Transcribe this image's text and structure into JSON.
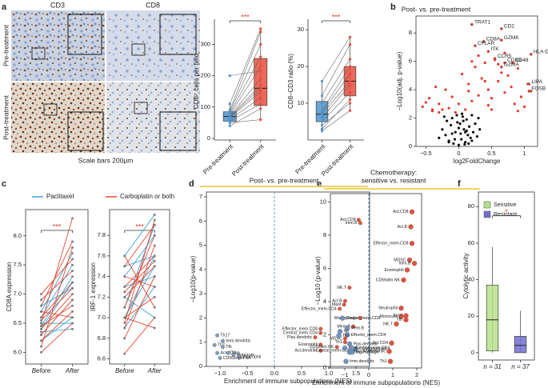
{
  "panel_labels": [
    "a",
    "b",
    "c",
    "d",
    "e",
    "f"
  ],
  "micrographs": {
    "columns": [
      "CD3",
      "CD8"
    ],
    "rows": [
      "Pre-treatment",
      "Post-treatment"
    ],
    "caption": "Scale bars 200μm"
  },
  "chart_data": [
    {
      "type": "box",
      "ylabel": "CD8⁺ cells per field",
      "categories": [
        "Pre-treatment",
        "Post-treatment"
      ],
      "colors": [
        "#4f94cd",
        "#e84c3d"
      ],
      "boxes": [
        {
          "q1": 55,
          "median": 70,
          "q3": 85,
          "low": 38,
          "high": 115
        },
        {
          "q1": 105,
          "median": 160,
          "q3": 255,
          "low": 55,
          "high": 350
        }
      ],
      "paired": {
        "before": [
          40,
          50,
          55,
          60,
          65,
          68,
          70,
          72,
          75,
          80,
          85,
          90,
          110,
          200
        ],
        "after": [
          95,
          60,
          110,
          130,
          150,
          160,
          170,
          190,
          230,
          260,
          300,
          340,
          350,
          215
        ]
      },
      "significance": "***",
      "ylim": [
        -5,
        370
      ],
      "yticks": [
        0,
        100,
        200,
        300
      ]
    },
    {
      "type": "box",
      "ylabel": "CD8–CD3 ratio (%)",
      "categories": [
        "Pre-treatment",
        "Post-treatment"
      ],
      "colors": [
        "#4f94cd",
        "#e84c3d"
      ],
      "boxes": [
        {
          "q1": 5,
          "median": 7,
          "q3": 10.5,
          "low": 2,
          "high": 16
        },
        {
          "q1": 12,
          "median": 16,
          "q3": 20,
          "low": 8,
          "high": 28
        }
      ],
      "paired": {
        "before": [
          2.5,
          3,
          4,
          5,
          6,
          7,
          7.5,
          8,
          10,
          12,
          16
        ],
        "after": [
          8,
          11,
          10,
          13,
          15,
          16,
          18,
          20,
          22,
          26,
          28
        ]
      },
      "significance": "***",
      "ylim": [
        0,
        32
      ],
      "yticks": [
        10,
        20,
        30
      ]
    },
    {
      "type": "scatter",
      "title": "Post- vs. pre-treatment",
      "xlabel": "log2FoldChange",
      "ylabel": "−Log10(adj. p-value)",
      "xlim": [
        -0.65,
        1.2
      ],
      "ylim": [
        0,
        9.2
      ],
      "xticks": [
        {
          "value": -0.5,
          "label": "−0.5"
        },
        0,
        0.5,
        1
      ],
      "yticks": [
        0,
        2,
        4,
        6,
        8
      ],
      "groups": [
        {
          "color": "#111111",
          "x": [
            -0.3,
            -0.25,
            -0.2,
            -0.18,
            -0.15,
            -0.12,
            -0.1,
            -0.08,
            -0.05,
            -0.03,
            0,
            0.02,
            0.04,
            0.06,
            0.08,
            0.1,
            0.12,
            0.14,
            0.16,
            0.18,
            0.2,
            0.22,
            0.25,
            0.28,
            0.3,
            -0.22,
            -0.06,
            0.05,
            0.1,
            0.15,
            -0.1,
            0.0,
            0.07,
            0.2,
            0.32,
            -0.15,
            0.03,
            0.12,
            -0.02,
            0.09
          ],
          "y": [
            0.6,
            1.2,
            0.8,
            1.8,
            0.4,
            1.5,
            2.0,
            0.2,
            1.0,
            2.2,
            0.1,
            1.6,
            0.5,
            2.1,
            1.2,
            0.3,
            1.9,
            0.8,
            1.4,
            0.6,
            2.2,
            1.0,
            1.6,
            0.7,
            2.0,
            2.1,
            0.5,
            2.3,
            1.0,
            0.2,
            0.9,
            1.3,
            1.8,
            0.4,
            1.2,
            0.3,
            0.9,
            1.1,
            1.7,
            0.15
          ]
        },
        {
          "color": "#e8362c",
          "x": [
            -0.55,
            -0.45,
            -0.4,
            -0.35,
            -0.3,
            -0.25,
            -0.5,
            -0.2,
            -0.15,
            -0.1,
            -0.05,
            0.0,
            0.05,
            0.1,
            0.15,
            0.2,
            0.25,
            0.3,
            0.35,
            0.4,
            0.45,
            0.5,
            0.55,
            0.6,
            0.65,
            0.7,
            0.75,
            0.8,
            0.85,
            0.9,
            0.95,
            1.0,
            1.05,
            1.1,
            0.3,
            0.45,
            0.6,
            0.4,
            0.5,
            0.2,
            -0.3,
            0.7,
            0.9,
            -0.4,
            0.15
          ],
          "y": [
            2.8,
            3.4,
            2.5,
            4.2,
            3.0,
            2.6,
            3.1,
            4.0,
            2.7,
            3.5,
            2.4,
            3.0,
            5.1,
            2.6,
            4.4,
            3.2,
            5.6,
            3.6,
            4.8,
            5.9,
            4.0,
            3.4,
            6.1,
            4.6,
            5.2,
            3.8,
            5.0,
            4.2,
            3.0,
            5.5,
            3.5,
            2.8,
            4.4,
            3.9,
            6.4,
            2.9,
            5.8,
            4.6,
            2.6,
            6.0,
            2.4,
            6.6,
            2.5,
            2.6,
            3.9
          ]
        },
        {
          "color": "#e8362c",
          "labels": [
            "TRAT1",
            "CD2",
            "CD8A",
            "GZMK",
            "CFLAR",
            "ITK",
            "HLA-DPA1",
            "CCR5",
            "CD3D",
            "CD48",
            "GZMA",
            "LIPA",
            "FOSB"
          ],
          "x": [
            0.2,
            0.65,
            0.38,
            0.65,
            0.25,
            0.45,
            1.1,
            0.55,
            0.7,
            0.82,
            0.65,
            1.07,
            1.07
          ],
          "y": [
            8.6,
            8.3,
            7.4,
            7.5,
            7.1,
            6.7,
            6.5,
            6.2,
            5.9,
            5.9,
            5.6,
            4.4,
            3.9
          ]
        }
      ]
    },
    {
      "type": "line",
      "ylabel": "CD8A expression",
      "categories": [
        "Before",
        "After"
      ],
      "significance": "***",
      "ylim": [
        5.8,
        8.45
      ],
      "yticks": [
        {
          "value": 6,
          "label": "6.0"
        },
        6.5,
        {
          "value": 7,
          "label": "7.0"
        },
        7.5,
        {
          "value": 8,
          "label": "8.0"
        }
      ],
      "series": [
        {
          "name": "Paclitaxel",
          "color": "#3aa6d8",
          "before": [
            6.2,
            6.3,
            6.4,
            6.5,
            6.6,
            6.7,
            6.35,
            6.8,
            6.45
          ],
          "after": [
            6.6,
            6.9,
            7.2,
            6.5,
            7.5,
            7.7,
            6.4,
            7.1,
            7.3
          ]
        },
        {
          "name": "Carboplatin or both",
          "color": "#e34a33",
          "before": [
            6.0,
            6.1,
            6.3,
            6.4,
            6.5,
            6.6,
            6.7,
            6.9,
            7.0,
            6.2,
            6.45,
            6.55,
            6.8
          ],
          "after": [
            6.5,
            7.8,
            6.9,
            7.0,
            8.3,
            7.2,
            6.6,
            7.4,
            7.6,
            6.7,
            6.8,
            7.1,
            7.9
          ]
        }
      ]
    },
    {
      "type": "line",
      "ylabel": "IRF-1 expression",
      "categories": [
        "Before",
        "After"
      ],
      "significance": "***",
      "ylim": [
        6.55,
        8.05
      ],
      "yticks": [
        6.6,
        6.8,
        {
          "value": 7,
          "label": "7.0"
        },
        7.2,
        7.4,
        7.6,
        7.8
      ],
      "series": [
        {
          "color": "#3aa6d8",
          "before": [
            6.9,
            7.0,
            7.1,
            7.2,
            7.3,
            7.4,
            7.5,
            7.0,
            7.6
          ],
          "after": [
            7.3,
            7.6,
            7.9,
            7.0,
            7.4,
            7.8,
            7.6,
            7.5,
            8.0
          ]
        },
        {
          "color": "#e34a33",
          "before": [
            6.65,
            6.8,
            6.9,
            7.0,
            7.1,
            7.2,
            7.3,
            7.4,
            7.5,
            7.6,
            7.0,
            6.95,
            7.25
          ],
          "after": [
            7.0,
            7.4,
            7.7,
            7.2,
            7.8,
            7.5,
            7.6,
            7.3,
            7.9,
            7.1,
            6.9,
            7.95,
            7.55
          ]
        }
      ]
    },
    {
      "type": "scatter",
      "title": "Post- vs. pre-treatment",
      "title_bar_color": "#f2c12e",
      "zero_line": "#5aa0d0",
      "xlabel": "Enrichment of immune subpopulations (NES)",
      "ylabel": "−Log10(p-value)",
      "xlim": [
        -1.25,
        1.75
      ],
      "ylim": [
        0,
        7.2
      ],
      "xticks": [
        {
          "value": -1,
          "label": "−1.0"
        },
        {
          "value": -0.5,
          "label": "−0.5"
        },
        {
          "value": 0,
          "label": "0.0"
        },
        0.5,
        {
          "value": 1,
          "label": "1.0"
        },
        1.5
      ],
      "yticks": [
        0,
        1,
        2,
        3,
        4,
        5,
        6,
        7
      ],
      "groups": [
        {
          "color": "#e0533e",
          "labels": [
            "Act.CD8",
            "Imm.B",
            "NK.T",
            "Act.B",
            "Mast",
            "Effector_mem.CD4",
            "Macrophage",
            "Mem.B",
            "Effector_mem.CD8",
            "Central_mem.CD4",
            "Plas.dendritic",
            "MDSC",
            "Th1",
            "Eosinophil",
            "CD56dim NK",
            "Act.dendritic",
            "Central_mem.CD8"
          ],
          "x": [
            1.55,
            1.58,
            1.38,
            1.3,
            1.28,
            1.2,
            1.58,
            1.45,
            0.85,
            0.85,
            0.75,
            1.3,
            1.3,
            0.85,
            1.15,
            0.85,
            1.45
          ],
          "y": [
            6.05,
            5.92,
            3.25,
            2.7,
            2.55,
            2.38,
            2.0,
            1.65,
            1.55,
            1.38,
            1.2,
            1.15,
            1.0,
            0.9,
            0.8,
            0.65,
            0.65
          ]
        },
        {
          "color": "#7f9fc0",
          "labels": [
            "Th17",
            "Imm.dendritic",
            "Th2",
            "Tfh",
            "Act.CD4",
            "Treg",
            "Monocyte",
            "Neutrophil",
            "CD56bright NK"
          ],
          "x": [
            -1.05,
            -0.95,
            -1.1,
            -0.95,
            -1.05,
            -0.85,
            -0.75,
            -0.65,
            -1.0
          ],
          "y": [
            1.28,
            1.05,
            0.88,
            0.8,
            0.55,
            0.55,
            0.48,
            0.4,
            0.35
          ]
        }
      ]
    },
    {
      "type": "scatter",
      "title": [
        "Chemotherapy:",
        "sensitive vs. resistant"
      ],
      "title_bar_color": "#f2c12e",
      "zero_line": "#3a8fd0",
      "xlabel": "Enrichment of immune subpopulations (NES)",
      "ylabel": "−Log10 (p-value)",
      "xlim": [
        -1.6,
        2.2
      ],
      "ylim": [
        0,
        10.5
      ],
      "xticks": [
        {
          "value": -1,
          "label": "−1"
        },
        0,
        1,
        2
      ],
      "yticks": [
        0,
        2,
        4,
        6,
        8,
        10
      ],
      "groups": [
        {
          "color": "#e0533e",
          "labels": [
            "Act.CD8",
            "Act.B",
            "Effector_mem.CD8",
            "MDSC",
            "Imm.B",
            "Eosinophil",
            "CD56dim NK",
            "Neutrophil",
            "Monocyte",
            "Th17",
            "Tfh",
            "NK.T",
            "Act.CD4",
            "Act.dendritic",
            "Th1"
          ],
          "x": [
            1.8,
            1.75,
            1.8,
            1.7,
            1.9,
            1.6,
            1.45,
            1.35,
            1.35,
            1.55,
            1.55,
            1.15,
            0.95,
            0.85,
            0.9
          ],
          "y": [
            9.4,
            8.5,
            7.5,
            6.5,
            6.3,
            5.9,
            5.3,
            3.6,
            3.1,
            3.15,
            2.9,
            2.65,
            1.5,
            1.0,
            0.4
          ]
        },
        {
          "color": "#6f93c0",
          "labels": [
            "Central_mem.CD8",
            "Mem.B",
            "NK",
            "Effector_mem.CD4",
            "Th2",
            "Plas.dendritic",
            "CD56bright NK",
            "Mast",
            "Treg",
            "Macrophage",
            "Central_mem.CD4",
            "Imm.dendritic"
          ],
          "x": [
            -1.1,
            -0.9,
            -1.2,
            -0.9,
            -1.25,
            -0.8,
            -0.55,
            -1.0,
            -0.8,
            -0.7,
            -0.7,
            -0.95
          ],
          "y": [
            3.0,
            2.4,
            2.2,
            2.0,
            1.95,
            1.45,
            1.15,
            1.2,
            0.95,
            0.95,
            1.2,
            0.4
          ]
        }
      ]
    },
    {
      "type": "box",
      "ylabel": "Cytolytic activity",
      "categories": [
        "n = 31",
        "n = 37"
      ],
      "legend": [
        "Sensitive",
        "Resistant"
      ],
      "colors": [
        "#b5e08a",
        "#7070d0"
      ],
      "boxes": [
        {
          "q1": 1,
          "median": 18,
          "q3": 37,
          "low": 0,
          "high": 58
        },
        {
          "q1": 0,
          "median": 4,
          "q3": 9,
          "low": 0,
          "high": 23
        }
      ],
      "significance": "*",
      "ylim": [
        -4,
        88
      ],
      "yticks": [
        0,
        20,
        40,
        60,
        80
      ]
    }
  ]
}
